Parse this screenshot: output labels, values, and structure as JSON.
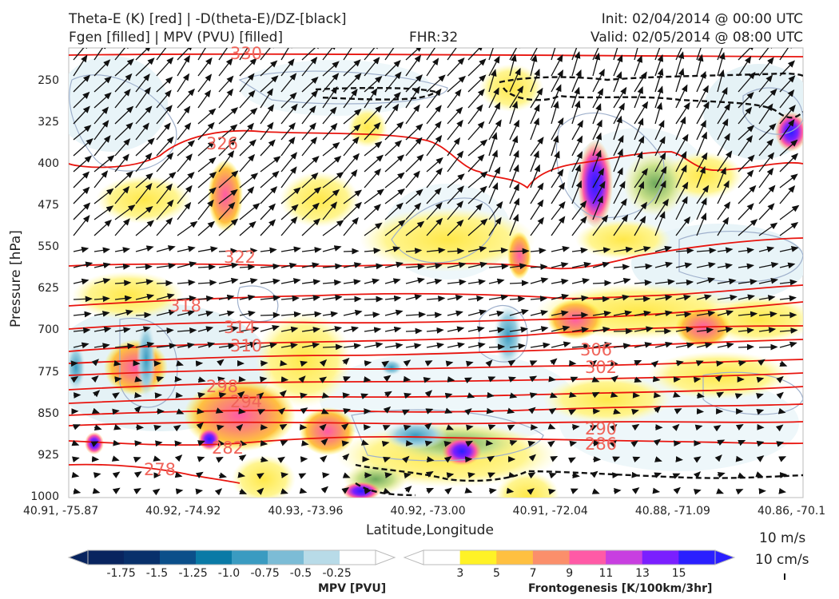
{
  "header": {
    "title_left_1": "Theta-E (K) [red] | -D(theta-E)/DZ-[black]",
    "title_left_2": "Fgen [filled] | MPV (PVU) [filled]",
    "title_center": "FHR:32",
    "title_right_1": "Init: 02/04/2014 @ 00:00 UTC",
    "title_right_2": "Valid: 02/05/2014 @ 08:00 UTC"
  },
  "chart_data": {
    "type": "contour",
    "xlabel": "Latitude,Longitude",
    "ylabel": "Pressure [hPa]",
    "y_range": [
      1000,
      190
    ],
    "y_ticks": [
      250,
      325,
      400,
      475,
      550,
      625,
      700,
      775,
      850,
      925,
      1000
    ],
    "x_ticks": [
      "40.91, -75.87",
      "40.92, -74.92",
      "40.93, -73.96",
      "40.92, -73.00",
      "40.91, -72.04",
      "40.88, -71.09",
      "40.86, -70.1"
    ],
    "theta_e_contours": [
      {
        "label": "330",
        "pressure": 190
      },
      {
        "label": "326",
        "pressure": 360
      },
      {
        "label": "322",
        "pressure": 572
      },
      {
        "label": "318",
        "pressure": 665
      },
      {
        "label": "314",
        "pressure": 712
      },
      {
        "label": "310",
        "pressure": 740
      },
      {
        "label": "306",
        "pressure": 757
      },
      {
        "label": "302",
        "pressure": 776
      },
      {
        "label": "298",
        "pressure": 798
      },
      {
        "label": "294",
        "pressure": 824
      },
      {
        "label": "290",
        "pressure": 851
      },
      {
        "label": "286",
        "pressure": 876
      },
      {
        "label": "282",
        "pressure": 903
      },
      {
        "label": "278",
        "pressure": 940
      }
    ],
    "wind_reference": {
      "label1": "10 m/s",
      "label2": "10 cm/s"
    },
    "colorbars": [
      {
        "title": "MPV [PVU]",
        "labels": [
          "-1.75",
          "-1.5",
          "-1.25",
          "-1.0",
          "-0.75",
          "-0.5",
          "-0.25"
        ],
        "colors": [
          "#08245f",
          "#08306b",
          "#0b4f8a",
          "#0a7aa6",
          "#3a9bc1",
          "#7cbcd6",
          "#b8dbe8",
          "#ffffff"
        ]
      },
      {
        "title": "Frontogenesis [K/100km/3hr]",
        "labels": [
          "3",
          "5",
          "7",
          "9",
          "11",
          "13",
          "15"
        ],
        "colors": [
          "#ffffff",
          "#fff226",
          "#ffc040",
          "#fb8f6b",
          "#ff5aa6",
          "#c83fe0",
          "#7a1fff",
          "#2a1fff"
        ]
      }
    ]
  }
}
